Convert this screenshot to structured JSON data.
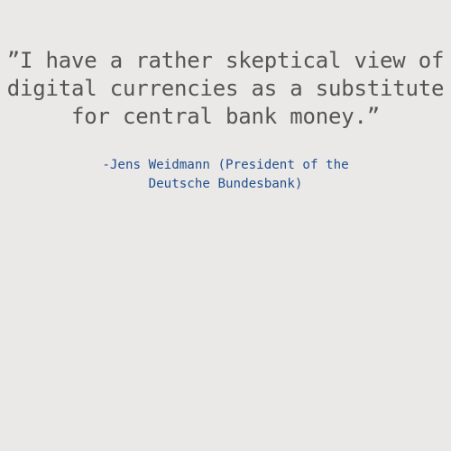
{
  "quote": {
    "lines": [
      "”I have a rather skeptical view of",
      "digital currencies as a substitute",
      "for central bank money.”"
    ]
  },
  "attribution": {
    "lines": [
      "-Jens Weidmann (President of the",
      "Deutsche Bundesbank)"
    ]
  },
  "colors": {
    "background": "#ebe9e7",
    "quote_text": "#555555",
    "attribution_text": "#1f4f8f"
  }
}
